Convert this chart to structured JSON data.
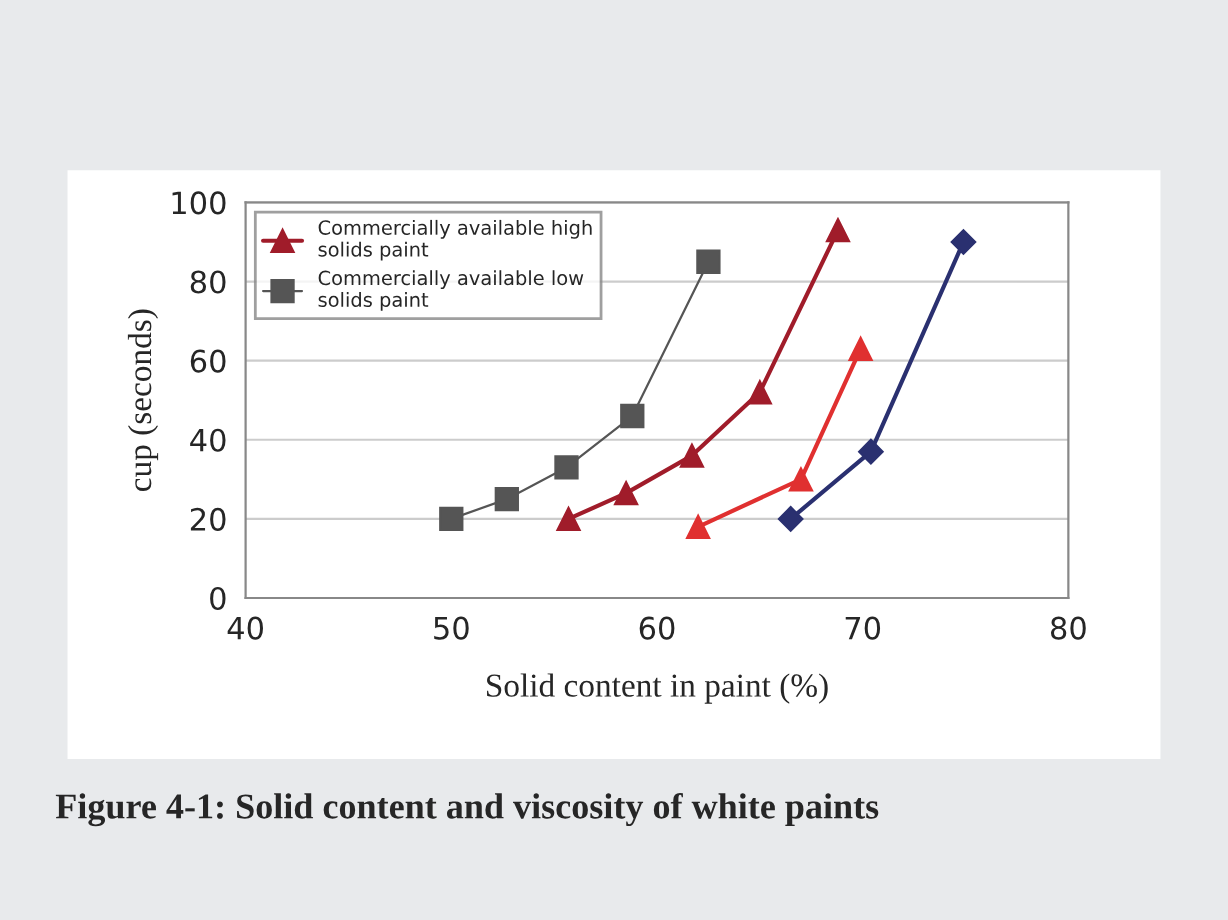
{
  "chart_data": {
    "type": "line",
    "xlabel": "Solid content in paint (%)",
    "ylabel": "cup (seconds)",
    "annotations": [
      "Figure 4-1: Solid content and viscosity of white paints"
    ],
    "xlim": [
      40,
      80
    ],
    "xticks": [
      40,
      50,
      60,
      70,
      80
    ],
    "ylim": [
      0,
      100
    ],
    "yticks": [
      0,
      20,
      40,
      60,
      80,
      100
    ],
    "grid": "y",
    "legend": "top left",
    "series": [
      {
        "color": "#2a3070",
        "marker": "diamond",
        "x": [
          66.5,
          70.4,
          74.9
        ],
        "values": [
          20,
          37,
          90
        ]
      },
      {
        "color": "#e03030",
        "marker": "triangle",
        "x": [
          62.0,
          67.0,
          69.9
        ],
        "values": [
          18,
          30,
          63
        ]
      },
      {
        "name": "Commercially available high\nsolids paint",
        "color": "#a01c2a",
        "marker": "triangle",
        "x": [
          55.7,
          58.5,
          61.7,
          65.0,
          68.8
        ],
        "values": [
          20,
          26.5,
          36,
          52,
          93
        ]
      },
      {
        "name": "Commercially available low\nsolids paint",
        "color": "#555555",
        "marker": "square",
        "x": [
          50,
          52.7,
          55.6,
          58.8,
          62.5
        ],
        "values": [
          20,
          25,
          33,
          46,
          85
        ]
      }
    ]
  }
}
